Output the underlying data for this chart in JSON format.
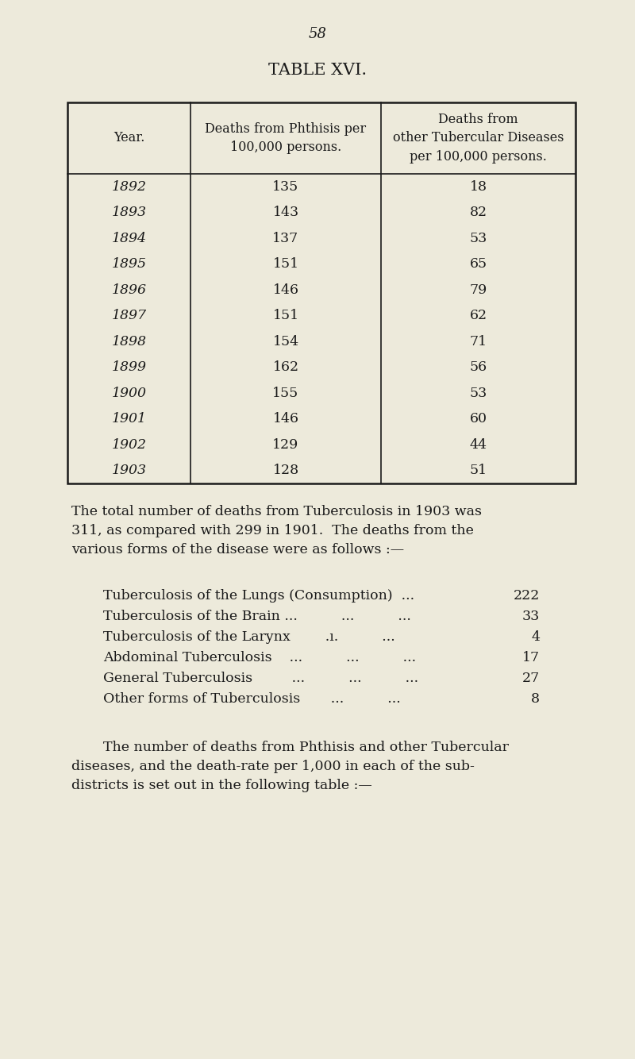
{
  "page_number": "58",
  "table_title": "TABLE XVI.",
  "bg_color": "#edeadb",
  "text_color": "#1a1a1a",
  "col_headers": [
    "Year.",
    "Deaths from Phthisis per\n100,000 persons.",
    "Deaths from\nother Tubercular Diseases\nper 100,000 persons."
  ],
  "table_data": [
    [
      "1892",
      "135",
      "18"
    ],
    [
      "1893",
      "143",
      "82"
    ],
    [
      "1894",
      "137",
      "53"
    ],
    [
      "1895",
      "151",
      "65"
    ],
    [
      "1896",
      "146",
      "79"
    ],
    [
      "1897",
      "151",
      "62"
    ],
    [
      "1898",
      "154",
      "71"
    ],
    [
      "1899",
      "162",
      "56"
    ],
    [
      "1900",
      "155",
      "53"
    ],
    [
      "1901",
      "146",
      "60"
    ],
    [
      "1902",
      "129",
      "44"
    ],
    [
      "1903",
      "128",
      "51"
    ]
  ],
  "para1_line1": "The total number of deaths from Tuberculosis in 1903 was",
  "para1_line2": "311, as compared with 299 in 1901.  The deaths from the",
  "para1_line3": "various forms of the disease were as follows :—",
  "disease_labels": [
    "Tuberculosis of the Lungs (Consumption)  ...",
    "Tuberculosis of the Brain ...          ...          ...",
    "Tuberculosis of the Larynx        .ı.          ...",
    "Abdominal Tuberculosis    ...          ...          ...",
    "General Tuberculosis         ...          ...          ...",
    "Other forms of Tuberculosis       ...          ..."
  ],
  "disease_values": [
    "222",
    "33",
    "4",
    "17",
    "27",
    "8"
  ],
  "para2_line1": "The number of deaths from Phthisis and other Tubercular",
  "para2_line2": "diseases, and the death-rate per 1,000 in each of the sub-",
  "para2_line3": "districts is set out in the following table :—",
  "font_size_body": 12.5,
  "font_size_header": 11.5,
  "font_size_title": 15,
  "font_size_page": 13
}
